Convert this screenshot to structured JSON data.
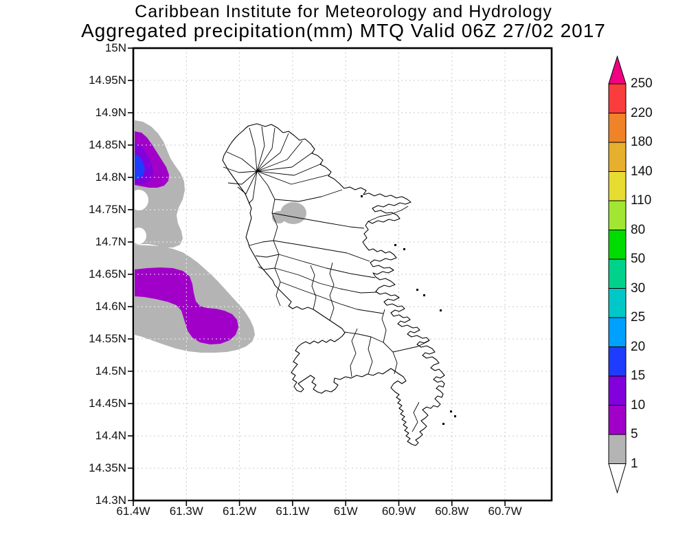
{
  "title": {
    "line1": "Caribbean Institute for Meteorology and Hydrology",
    "line2": "Aggregated precipitation(mm) MTQ Valid 06Z 27/02 2017"
  },
  "chart_data": {
    "type": "heatmap",
    "title": "Aggregated precipitation(mm) MTQ Valid 06Z 27/02 2017",
    "institution": "Caribbean Institute for Meteorology and Hydrology",
    "region": "MTQ (Martinique)",
    "valid_time": "06Z 27/02 2017",
    "units": "mm",
    "grid": true,
    "lat_ticks": [
      "15N",
      "14.95N",
      "14.9N",
      "14.85N",
      "14.8N",
      "14.75N",
      "14.7N",
      "14.65N",
      "14.6N",
      "14.55N",
      "14.5N",
      "14.45N",
      "14.4N",
      "14.35N",
      "14.3N"
    ],
    "lon_ticks": [
      "61.4W",
      "61.3W",
      "61.2W",
      "61.1W",
      "61W",
      "60.9W",
      "60.8W",
      "60.7W"
    ],
    "lat_range": [
      14.3,
      15.0
    ],
    "lon_range": [
      -61.4,
      -60.61
    ],
    "colorbar": {
      "orientation": "vertical",
      "levels": [
        1,
        5,
        10,
        15,
        20,
        25,
        30,
        50,
        80,
        110,
        140,
        180,
        220,
        250
      ],
      "colors_bottom_to_top": [
        "#ffffff",
        "#b4b4b4",
        "#a000c8",
        "#8200dc",
        "#1e3cff",
        "#00a0ff",
        "#00c8c8",
        "#00d28c",
        "#00dc00",
        "#a0e632",
        "#e6dc32",
        "#e6af2d",
        "#f08228",
        "#fa3c3c",
        "#f00082"
      ]
    },
    "shaded_features": [
      {
        "name": "offshore-cell-northwest",
        "max_bin_mm": "15-20",
        "bins_shown_mm": [
          "1-5",
          "5-10",
          "10-15",
          "15-20"
        ],
        "approx_center": {
          "lat": 14.82,
          "lon": -61.39
        }
      },
      {
        "name": "offshore-band-west",
        "max_bin_mm": "5-10",
        "bins_shown_mm": [
          "1-5",
          "5-10"
        ],
        "approx_center": {
          "lat": 14.6,
          "lon": -61.33
        }
      },
      {
        "name": "island-interior-spot",
        "max_bin_mm": "1-5",
        "bins_shown_mm": [
          "1-5"
        ],
        "approx_center": {
          "lat": 14.745,
          "lon": -61.1
        }
      }
    ]
  }
}
